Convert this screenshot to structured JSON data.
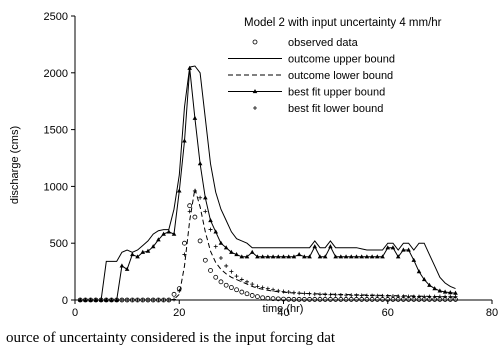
{
  "chart_data": {
    "type": "line",
    "title": "Model 2 with input uncertainty 4 mm/hr",
    "xlabel": "time (hr)",
    "ylabel": "discharge (cms)",
    "xlim": [
      0,
      80
    ],
    "ylim": [
      0,
      2500
    ],
    "xticks": [
      0,
      20,
      40,
      60,
      80
    ],
    "yticks": [
      0,
      500,
      1000,
      1500,
      2000,
      2500
    ],
    "grid": false,
    "legend_position": "top-right",
    "series": [
      {
        "name": "observed data",
        "style": "open-circle",
        "x": [
          1,
          2,
          3,
          4,
          5,
          6,
          7,
          8,
          9,
          10,
          11,
          12,
          13,
          14,
          15,
          16,
          17,
          18,
          19,
          20,
          21,
          22,
          23,
          24,
          25,
          26,
          27,
          28,
          29,
          30,
          31,
          32,
          33,
          34,
          35,
          36,
          37,
          38,
          39,
          40,
          41,
          42,
          43,
          44,
          45,
          46,
          47,
          48,
          49,
          50,
          51,
          52,
          53,
          54,
          55,
          56,
          57,
          58,
          59,
          60,
          61,
          62,
          63,
          64,
          65,
          66,
          67,
          68,
          69,
          70,
          71,
          72,
          73
        ],
        "y": [
          0,
          0,
          0,
          0,
          0,
          0,
          0,
          0,
          0,
          0,
          0,
          0,
          0,
          0,
          0,
          0,
          0,
          0,
          50,
          100,
          500,
          830,
          730,
          520,
          350,
          260,
          200,
          160,
          130,
          110,
          90,
          70,
          55,
          40,
          30,
          20,
          15,
          12,
          10,
          8,
          6,
          5,
          5,
          5,
          5,
          5,
          5,
          5,
          5,
          5,
          5,
          5,
          5,
          5,
          5,
          5,
          5,
          5,
          5,
          5,
          5,
          5,
          5,
          5,
          5,
          5,
          5,
          5,
          5,
          5,
          5,
          5,
          5
        ]
      },
      {
        "name": "outcome upper bound",
        "style": "solid",
        "x": [
          1,
          5,
          6,
          7,
          8,
          9,
          10,
          11,
          12,
          13,
          14,
          15,
          16,
          17,
          18,
          19,
          20,
          21,
          22,
          23,
          24,
          25,
          26,
          27,
          28,
          29,
          30,
          31,
          32,
          33,
          34,
          35,
          36,
          37,
          38,
          39,
          40,
          41,
          42,
          43,
          44,
          45,
          46,
          47,
          48,
          49,
          50,
          51,
          52,
          53,
          54,
          55,
          56,
          57,
          58,
          59,
          60,
          61,
          62,
          63,
          64,
          65,
          66,
          67,
          68,
          69,
          70,
          71,
          72,
          73
        ],
        "y": [
          0,
          0,
          340,
          340,
          340,
          420,
          440,
          420,
          440,
          480,
          520,
          580,
          610,
          620,
          620,
          800,
          1100,
          1700,
          2050,
          2060,
          2000,
          1600,
          1200,
          950,
          800,
          700,
          600,
          540,
          520,
          500,
          460,
          460,
          460,
          460,
          460,
          460,
          460,
          460,
          460,
          460,
          460,
          460,
          520,
          460,
          460,
          520,
          460,
          460,
          460,
          460,
          460,
          450,
          440,
          440,
          440,
          440,
          500,
          500,
          440,
          500,
          500,
          440,
          500,
          500,
          400,
          300,
          200,
          150,
          120,
          100
        ]
      },
      {
        "name": "outcome lower bound",
        "style": "dashed",
        "x": [
          1,
          15,
          18,
          19,
          20,
          21,
          22,
          23,
          24,
          25,
          26,
          27,
          28,
          29,
          30,
          31,
          32,
          33,
          34,
          35,
          36,
          37,
          38,
          39,
          40,
          42,
          44,
          46,
          48,
          50,
          52,
          54,
          56,
          58,
          60,
          62,
          64,
          66,
          68,
          70,
          72,
          73
        ],
        "y": [
          0,
          0,
          0,
          5,
          50,
          300,
          700,
          980,
          820,
          600,
          430,
          330,
          270,
          230,
          200,
          180,
          160,
          140,
          120,
          105,
          95,
          85,
          78,
          72,
          68,
          62,
          58,
          55,
          52,
          50,
          48,
          46,
          44,
          42,
          40,
          38,
          36,
          34,
          32,
          30,
          28,
          26
        ]
      },
      {
        "name": "best fit upper bound",
        "style": "solid-triangle",
        "x": [
          1,
          2,
          3,
          4,
          5,
          6,
          7,
          8,
          9,
          10,
          11,
          12,
          13,
          14,
          15,
          16,
          17,
          18,
          19,
          20,
          21,
          22,
          23,
          24,
          25,
          26,
          27,
          28,
          29,
          30,
          31,
          32,
          33,
          34,
          35,
          36,
          37,
          38,
          39,
          40,
          41,
          42,
          43,
          44,
          45,
          46,
          47,
          48,
          49,
          50,
          51,
          52,
          53,
          54,
          55,
          56,
          57,
          58,
          59,
          60,
          61,
          62,
          63,
          64,
          65,
          66,
          67,
          68,
          69,
          70,
          71,
          72,
          73
        ],
        "y": [
          0,
          0,
          0,
          0,
          0,
          0,
          0,
          0,
          300,
          270,
          400,
          380,
          420,
          430,
          470,
          530,
          580,
          600,
          580,
          960,
          1400,
          2040,
          1600,
          1200,
          900,
          700,
          600,
          500,
          460,
          420,
          400,
          380,
          380,
          420,
          380,
          380,
          380,
          380,
          380,
          380,
          380,
          380,
          400,
          380,
          380,
          470,
          380,
          380,
          470,
          380,
          380,
          380,
          380,
          380,
          380,
          380,
          380,
          380,
          380,
          460,
          460,
          380,
          440,
          440,
          350,
          250,
          180,
          130,
          100,
          80,
          70,
          65,
          60
        ]
      },
      {
        "name": "best fit lower bound",
        "style": "plus",
        "x": [
          1,
          2,
          3,
          4,
          5,
          6,
          7,
          8,
          9,
          10,
          11,
          12,
          13,
          14,
          15,
          16,
          17,
          18,
          19,
          20,
          21,
          22,
          23,
          24,
          25,
          26,
          27,
          28,
          29,
          30,
          31,
          32,
          33,
          34,
          35,
          36,
          37,
          38,
          39,
          40,
          41,
          42,
          43,
          44,
          45,
          46,
          47,
          48,
          49,
          50,
          51,
          52,
          53,
          54,
          55,
          56,
          57,
          58,
          59,
          60,
          61,
          62,
          63,
          64,
          65,
          66,
          67,
          68,
          69,
          70,
          71,
          72,
          73
        ],
        "y": [
          0,
          0,
          0,
          0,
          0,
          0,
          0,
          0,
          0,
          0,
          0,
          0,
          0,
          0,
          0,
          0,
          0,
          0,
          5,
          80,
          400,
          780,
          960,
          900,
          780,
          620,
          470,
          370,
          300,
          250,
          210,
          180,
          160,
          140,
          120,
          110,
          100,
          90,
          80,
          75,
          70,
          65,
          60,
          58,
          55,
          52,
          50,
          48,
          46,
          45,
          44,
          43,
          42,
          41,
          40,
          39,
          38,
          37,
          36,
          35,
          34,
          33,
          32,
          31,
          30,
          30,
          30,
          30,
          30,
          30,
          30,
          30,
          30
        ]
      }
    ]
  },
  "caption": {
    "text": "ource of uncertainty considered is the input forcing dat"
  }
}
